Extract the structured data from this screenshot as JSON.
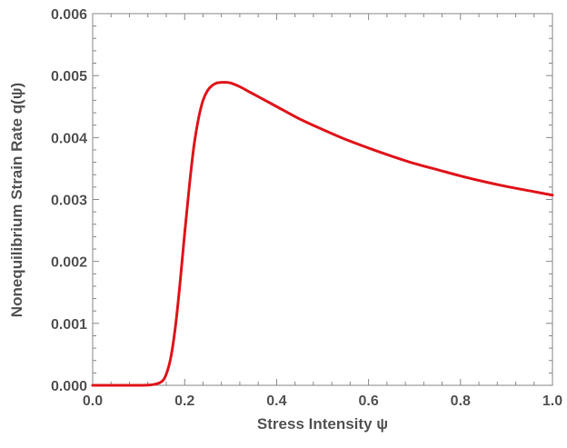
{
  "chart_data": {
    "type": "line",
    "title": "",
    "xlabel": "Stress Intensity ψ",
    "ylabel": "Nonequilibrium Strain Rate q(ψ)",
    "xlim": [
      0,
      1
    ],
    "ylim": [
      0,
      0.006
    ],
    "x_ticks": [
      "0.0",
      "0.2",
      "0.4",
      "0.6",
      "0.8",
      "1.0"
    ],
    "y_ticks": [
      "0.000",
      "0.001",
      "0.002",
      "0.003",
      "0.004",
      "0.005",
      "0.006"
    ],
    "grid": false,
    "legend": "none",
    "series": [
      {
        "color": "#e0161c",
        "x": [
          0.0,
          0.05,
          0.1,
          0.13,
          0.15,
          0.16,
          0.17,
          0.18,
          0.19,
          0.2,
          0.21,
          0.22,
          0.23,
          0.24,
          0.25,
          0.26,
          0.27,
          0.28,
          0.29,
          0.3,
          0.32,
          0.34,
          0.36,
          0.4,
          0.45,
          0.5,
          0.55,
          0.6,
          0.65,
          0.7,
          0.75,
          0.8,
          0.85,
          0.9,
          0.95,
          1.0
        ],
        "y": [
          0.0,
          0.0,
          0.0,
          1e-05,
          6e-05,
          0.00018,
          0.00045,
          0.00095,
          0.00165,
          0.00245,
          0.0032,
          0.00385,
          0.0043,
          0.0046,
          0.00476,
          0.00484,
          0.00488,
          0.00489,
          0.00489,
          0.00488,
          0.00482,
          0.00474,
          0.00466,
          0.0045,
          0.0043,
          0.00413,
          0.00397,
          0.00383,
          0.0037,
          0.00358,
          0.00348,
          0.00338,
          0.00329,
          0.00321,
          0.00314,
          0.00307
        ]
      }
    ]
  }
}
